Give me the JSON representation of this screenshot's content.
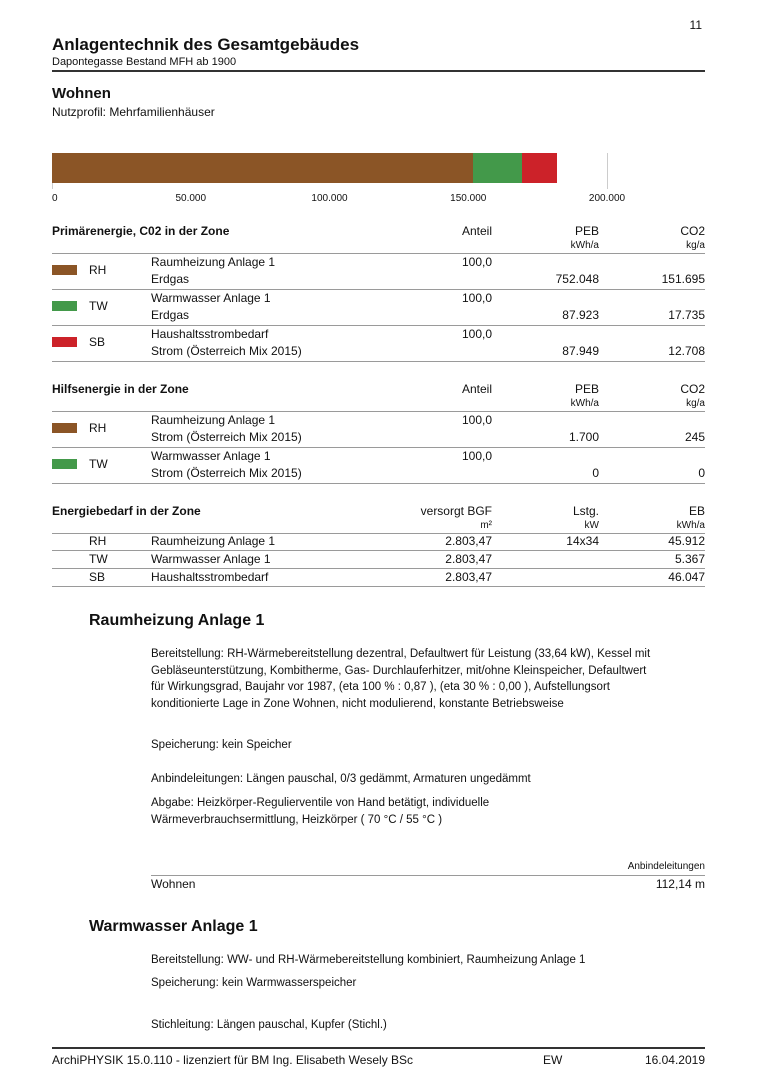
{
  "header": {
    "page_number": "11",
    "title": "Anlagentechnik des Gesamtgebäudes",
    "subtitle": "Dapontegasse Bestand MFH ab 1900"
  },
  "zone": {
    "title": "Wohnen",
    "profile": "Nutzprofil: Mehrfamilienhäuser"
  },
  "chart_data": {
    "type": "bar",
    "orientation": "horizontal",
    "stacked": true,
    "xlim": [
      0,
      200000
    ],
    "tick_labels": [
      "0",
      "50.000",
      "100.000",
      "150.000",
      "200.000"
    ],
    "ticks": [
      0,
      50000,
      100000,
      150000,
      200000
    ],
    "segments": [
      {
        "code": "RH",
        "value": 151695,
        "color": "#8b5526"
      },
      {
        "code": "TW",
        "value": 17735,
        "color": "#43994a"
      },
      {
        "code": "SB",
        "value": 12708,
        "color": "#cc2229"
      }
    ]
  },
  "primary": {
    "title": "Primärenergie, C02 in der Zone",
    "cols": [
      "Anteil",
      "PEB",
      "CO2"
    ],
    "units": [
      "",
      "kWh/a",
      "kg/a"
    ],
    "rows": [
      {
        "code": "RH",
        "color": "#8b5526",
        "name": "Raumheizung  Anlage 1",
        "carrier": "Erdgas",
        "share": "100,0",
        "peb": "752.048",
        "co2": "151.695"
      },
      {
        "code": "TW",
        "color": "#43994a",
        "name": "Warmwasser Anlage 1",
        "carrier": "Erdgas",
        "share": "100,0",
        "peb": "87.923",
        "co2": "17.735"
      },
      {
        "code": "SB",
        "color": "#cc2229",
        "name": "Haushaltsstrombedarf",
        "carrier": "Strom (Österreich Mix 2015)",
        "share": "100,0",
        "peb": "87.949",
        "co2": "12.708"
      }
    ]
  },
  "aux": {
    "title": "Hilfsenergie in der Zone",
    "cols": [
      "Anteil",
      "PEB",
      "CO2"
    ],
    "units": [
      "",
      "kWh/a",
      "kg/a"
    ],
    "rows": [
      {
        "code": "RH",
        "color": "#8b5526",
        "name": "Raumheizung  Anlage 1",
        "carrier": "Strom (Österreich Mix 2015)",
        "share": "100,0",
        "peb": "1.700",
        "co2": "245"
      },
      {
        "code": "TW",
        "color": "#43994a",
        "name": "Warmwasser Anlage 1",
        "carrier": "Strom (Österreich Mix 2015)",
        "share": "100,0",
        "peb": "0",
        "co2": "0"
      }
    ]
  },
  "demand": {
    "title": "Energiebedarf in der Zone",
    "cols": [
      "versorgt BGF",
      "Lstg.",
      "EB"
    ],
    "units": [
      "m²",
      "kW",
      "kWh/a"
    ],
    "rows": [
      {
        "code": "RH",
        "name": "Raumheizung  Anlage 1",
        "bgf": "2.803,47",
        "lstg": "14x34",
        "eb": "45.912"
      },
      {
        "code": "TW",
        "name": "Warmwasser Anlage 1",
        "bgf": "2.803,47",
        "lstg": "",
        "eb": "5.367"
      },
      {
        "code": "SB",
        "name": "Haushaltsstrombedarf",
        "bgf": "2.803,47",
        "lstg": "",
        "eb": "46.047"
      }
    ]
  },
  "rh_section": {
    "title": "Raumheizung  Anlage 1",
    "bereitstellung": "Bereitstellung: RH-Wärmebereitstellung dezentral, Defaultwert für Leistung  (33,64 kW), Kessel mit Gebläseunterstützung, Kombitherme, Gas- Durchlauferhitzer, mit/ohne Kleinspeicher, Defaultwert für Wirkungsgrad, Baujahr vor 1987, (eta 100 % : 0,87 ), (eta 30 % : 0,00 ), Aufstellungsort konditionierte Lage in Zone Wohnen, nicht modulierend, konstante Betriebsweise",
    "speicherung": "Speicherung: kein Speicher",
    "anbindeleitungen": "Anbindeleitungen: Längen pauschal, 0/3 gedämmt, Armaturen ungedämmt",
    "abgabe": "Abgabe: Heizkörper-Regulierventile von Hand betätigt, individuelle Wärmeverbrauchsermittlung, Heizkörper ( 70 °C / 55 °C )",
    "pipe_header": "Anbindeleitungen",
    "pipe_zone": "Wohnen",
    "pipe_value": "112,14 m"
  },
  "ww_section": {
    "title": "Warmwasser Anlage 1",
    "bereitstellung": "Bereitstellung: WW- und RH-Wärmebereitstellung  kombiniert, Raumheizung  Anlage 1",
    "speicherung": "Speicherung: kein Warmwasserspeicher",
    "stichleitung": "Stichleitung: Längen pauschal, Kupfer (Stichl.)"
  },
  "footer": {
    "software": "ArchiPHYSIK 15.0.110 - lizenziert für BM Ing. Elisabeth Wesely BSc",
    "initials": "EW",
    "date": "16.04.2019"
  }
}
